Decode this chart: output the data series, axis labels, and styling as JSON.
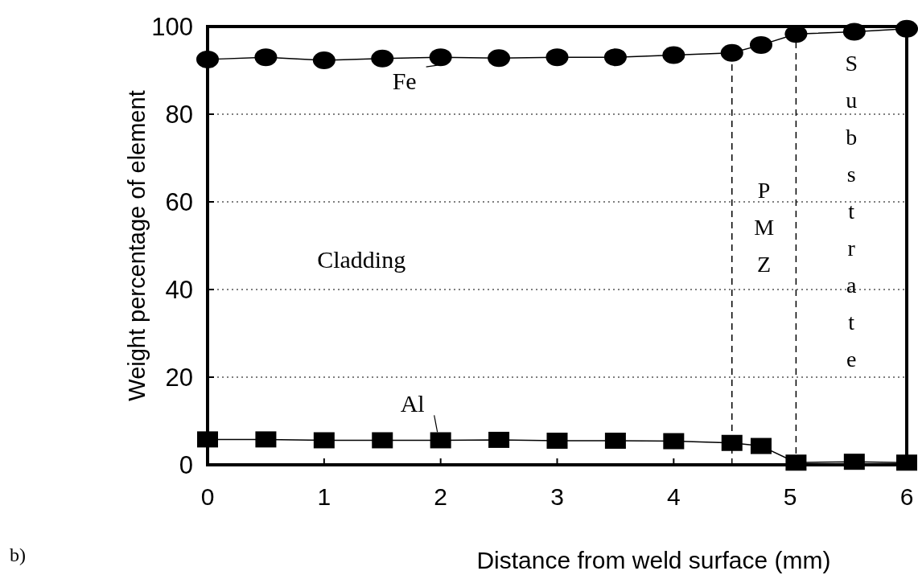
{
  "chart_data": {
    "type": "line",
    "xlabel": "Distance from weld surface (mm)",
    "ylabel": "Weight percentage of element",
    "xlim": [
      0,
      6
    ],
    "xticks": [
      0,
      1,
      2,
      3,
      4,
      5,
      6
    ],
    "ylim": [
      0,
      100
    ],
    "yticks": [
      0,
      20,
      40,
      60,
      80,
      100
    ],
    "grid": "y",
    "x": [
      0,
      0.5,
      1,
      1.5,
      2,
      2.5,
      3,
      3.5,
      4,
      4.5,
      4.75,
      5.05,
      5.55,
      6
    ],
    "series": [
      {
        "name": "Fe",
        "color": "#000000",
        "marker": "circle",
        "values": [
          92.5,
          93,
          92.3,
          92.7,
          93,
          92.8,
          93,
          93,
          93.5,
          94,
          95.8,
          98.3,
          98.8,
          99.5
        ]
      },
      {
        "name": "Al",
        "color": "#000000",
        "marker": "square",
        "values": [
          5.8,
          5.8,
          5.6,
          5.6,
          5.6,
          5.7,
          5.5,
          5.5,
          5.4,
          5.0,
          4.3,
          0.5,
          0.7,
          0.5
        ]
      }
    ],
    "ref_lines": [
      {
        "axis": "x",
        "value": 4.5,
        "line_style": "dashed"
      },
      {
        "axis": "x",
        "value": 5.05,
        "line_style": "dashed"
      }
    ],
    "annotations": [
      "Cladding",
      "PMZ",
      "Substrate",
      "b)"
    ]
  }
}
